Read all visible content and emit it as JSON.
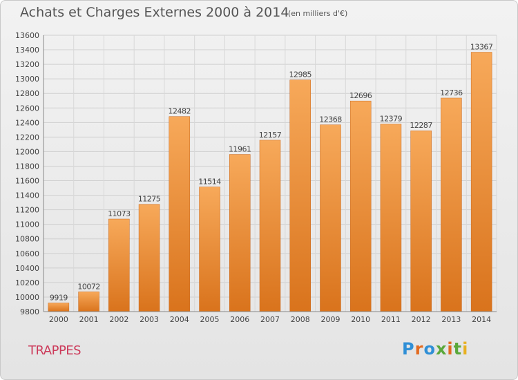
{
  "chart_data": {
    "type": "bar",
    "title": "Achats et Charges Externes 2000 à 2014",
    "subtitle": "(en milliers d'€)",
    "categories": [
      "2000",
      "2001",
      "2002",
      "2003",
      "2004",
      "2005",
      "2006",
      "2007",
      "2008",
      "2009",
      "2010",
      "2011",
      "2012",
      "2013",
      "2014"
    ],
    "values": [
      9919,
      10072,
      11073,
      11275,
      12482,
      11514,
      11961,
      12157,
      12985,
      12368,
      12696,
      12379,
      12287,
      12736,
      13367
    ],
    "ylim": [
      9800,
      13600
    ],
    "yticks": [
      9800,
      10000,
      10200,
      10400,
      10600,
      10800,
      11000,
      11200,
      11400,
      11600,
      11800,
      12000,
      12200,
      12400,
      12600,
      12800,
      13000,
      13200,
      13400,
      13600
    ],
    "grid": true,
    "bar_color": "#f0923c"
  },
  "commune": "TRAPPES",
  "logo": {
    "text": "Proxiti",
    "letter_colors": [
      "#2f8fd6",
      "#e36a1f",
      "#2f8fd6",
      "#5aa83b",
      "#e36a1f",
      "#5aa83b",
      "#e8b020"
    ]
  }
}
